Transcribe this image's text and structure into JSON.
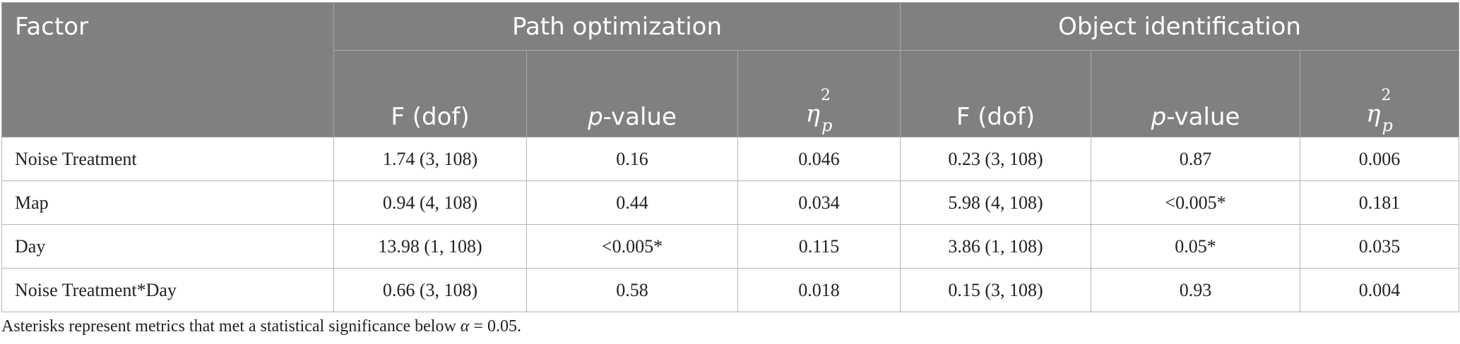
{
  "table": {
    "header": {
      "factor": "Factor",
      "groups": [
        "Path optimization",
        "Object identification"
      ],
      "f_dof": "F (dof)",
      "p_prefix": "p",
      "p_suffix": "-value",
      "eta_symbol": "η",
      "eta_sup": "2",
      "eta_sub": "p"
    },
    "rows": [
      {
        "factor": "Noise Treatment",
        "path_f": "1.74 (3, 108)",
        "path_p": "0.16",
        "path_eta": "0.046",
        "obj_f": "0.23 (3, 108)",
        "obj_p": "0.87",
        "obj_eta": "0.006"
      },
      {
        "factor": "Map",
        "path_f": "0.94 (4, 108)",
        "path_p": "0.44",
        "path_eta": "0.034",
        "obj_f": "5.98 (4, 108)",
        "obj_p": "<0.005*",
        "obj_eta": "0.181"
      },
      {
        "factor": "Day",
        "path_f": "13.98 (1, 108)",
        "path_p": "<0.005*",
        "path_eta": "0.115",
        "obj_f": "3.86 (1, 108)",
        "obj_p": "0.05*",
        "obj_eta": "0.035"
      },
      {
        "factor": "Noise Treatment*Day",
        "path_f": "0.66 (3, 108)",
        "path_p": "0.58",
        "path_eta": "0.018",
        "obj_f": "0.15 (3, 108)",
        "obj_p": "0.93",
        "obj_eta": "0.004"
      }
    ]
  },
  "footnote": {
    "text": "Asterisks represent metrics that met a statistical significance below ",
    "alpha": "α",
    "value": " = 0.05."
  }
}
